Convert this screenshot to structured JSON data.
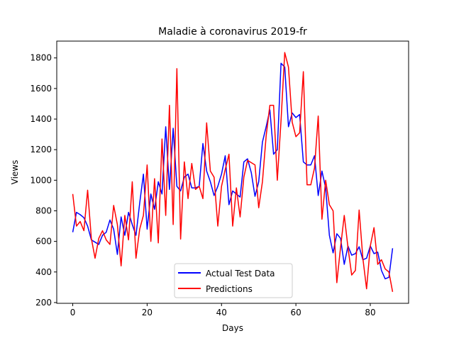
{
  "chart_data": {
    "type": "line",
    "title": "Maladie à coronavirus 2019-fr",
    "xlabel": "Days",
    "ylabel": "Views",
    "xlim": [
      -4.3,
      90.3
    ],
    "ylim": [
      195,
      1910
    ],
    "x_ticks": [
      0,
      20,
      40,
      60,
      80
    ],
    "y_ticks": [
      200,
      400,
      600,
      800,
      1000,
      1200,
      1400,
      1600,
      1800
    ],
    "grid": false,
    "legend": {
      "placement": "lower-center"
    },
    "series": [
      {
        "name": "Actual Test Data",
        "color": "#0000ff",
        "values": [
          660,
          790,
          775,
          755,
          700,
          610,
          595,
          580,
          640,
          660,
          740,
          680,
          515,
          760,
          640,
          790,
          710,
          640,
          850,
          1040,
          680,
          910,
          810,
          990,
          910,
          1350,
          940,
          1340,
          960,
          930,
          1020,
          1040,
          950,
          950,
          960,
          1240,
          1060,
          990,
          900,
          960,
          1040,
          1160,
          840,
          930,
          910,
          890,
          1120,
          1140,
          1050,
          895,
          990,
          1250,
          1350,
          1460,
          1170,
          1200,
          1765,
          1740,
          1350,
          1440,
          1410,
          1430,
          1120,
          1100,
          1100,
          1160,
          900,
          1060,
          950,
          640,
          525,
          650,
          620,
          450,
          570,
          510,
          520,
          565,
          480,
          490,
          570,
          520,
          530,
          410,
          355,
          365,
          555
        ]
      },
      {
        "name": "Predictions",
        "color": "#ff0000",
        "values": [
          910,
          700,
          730,
          670,
          935,
          620,
          490,
          620,
          670,
          610,
          580,
          835,
          710,
          440,
          770,
          610,
          990,
          490,
          680,
          770,
          1100,
          600,
          1010,
          590,
          1270,
          770,
          1490,
          710,
          1730,
          615,
          1120,
          880,
          1110,
          940,
          960,
          880,
          1375,
          1060,
          1020,
          700,
          960,
          1070,
          1170,
          700,
          950,
          760,
          1020,
          1130,
          1115,
          1100,
          820,
          990,
          1290,
          1490,
          1490,
          1000,
          1390,
          1835,
          1740,
          1380,
          1285,
          1310,
          1710,
          970,
          970,
          1080,
          1420,
          745,
          1000,
          840,
          800,
          330,
          560,
          770,
          560,
          380,
          410,
          805,
          490,
          290,
          570,
          690,
          450,
          480,
          420,
          400,
          270
        ]
      }
    ]
  }
}
